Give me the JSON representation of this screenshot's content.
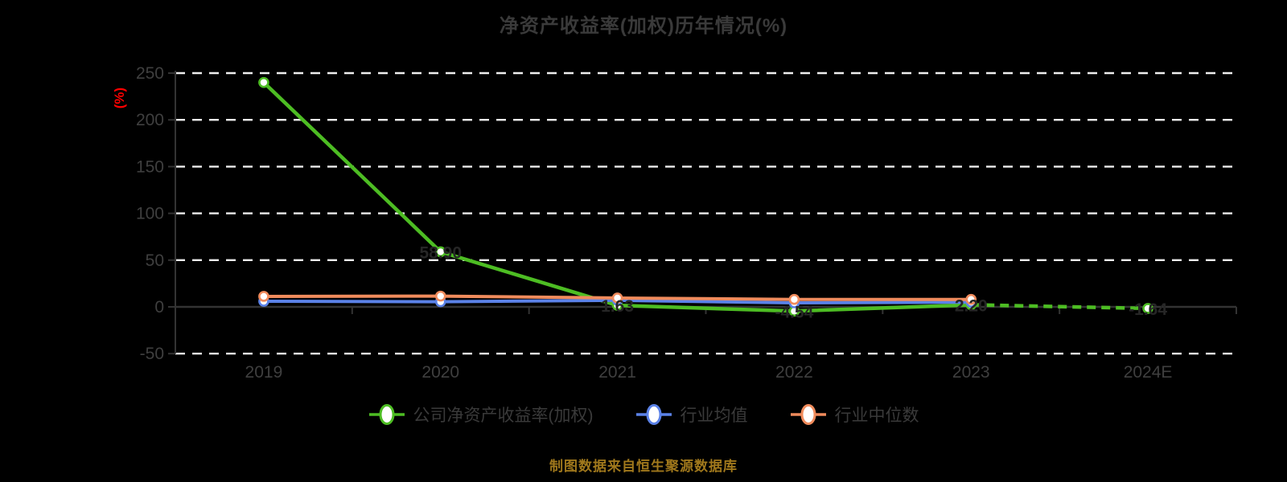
{
  "chart_data": {
    "type": "line",
    "title": "净资产收益率(加权)历年情况(%)",
    "ylabel": "(%)",
    "footer": "制图数据来自恒生聚源数据库",
    "categories": [
      "2019",
      "2020",
      "2021",
      "2022",
      "2023",
      "2024E"
    ],
    "ylim": [
      -50,
      250
    ],
    "yticks": [
      250,
      200,
      150,
      100,
      50,
      0,
      -50
    ],
    "grid": "horizontal-dashed",
    "legend_position": "bottom",
    "series": [
      {
        "name": "公司净资产收益率(加权)",
        "color": "#4dbd23",
        "marker": "circle-white-fill",
        "values": [
          240.0,
          58.9,
          1.63,
          -4.54,
          2.2,
          -1.64
        ],
        "point_labels": [
          "",
          "58.90",
          "1.63",
          "-4.54",
          "2.20",
          "-1.64"
        ],
        "forecast_dashed_from_index": 4
      },
      {
        "name": "行业均值",
        "color": "#5b82e8",
        "marker": "circle-white-fill",
        "values": [
          6.0,
          5.5,
          7.0,
          4.3,
          5.0,
          null
        ],
        "point_labels": [
          "",
          "",
          "",
          "",
          "",
          ""
        ]
      },
      {
        "name": "行业中位数",
        "color": "#f08b5c",
        "marker": "circle-white-fill",
        "values": [
          11.2,
          11.5,
          9.5,
          8.0,
          8.0,
          null
        ],
        "point_labels": [
          "",
          "",
          "",
          "",
          "",
          ""
        ]
      }
    ]
  },
  "colors": {
    "background": "#000000",
    "grid_line": "#ededed",
    "axis_line": "#333333",
    "title_text": "#3a3a3a",
    "tick_text": "#3f3f3f",
    "point_label_text": "#262626",
    "ylabel_text": "#ff0000",
    "footer_text": "#a0781c"
  }
}
